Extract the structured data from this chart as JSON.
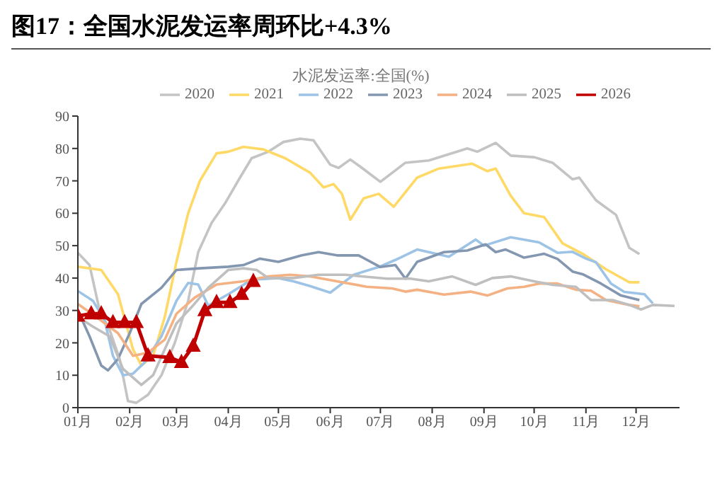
{
  "chart_data": {
    "type": "line",
    "title": "图17：全国水泥发运率周环比+4.3%",
    "subtitle": "水泥发运率:全国(%)",
    "xlim": [
      "--01-01",
      "--12-27"
    ],
    "xticks": [
      {
        "value": "--01-01",
        "label": "01月"
      },
      {
        "value": "--02-01",
        "label": "02月"
      },
      {
        "value": "--03-01",
        "label": "03月"
      },
      {
        "value": "--04-01",
        "label": "04月"
      },
      {
        "value": "--05-01",
        "label": "05月"
      },
      {
        "value": "--06-01",
        "label": "06月"
      },
      {
        "value": "--07-01",
        "label": "07月"
      },
      {
        "value": "--08-01",
        "label": "08月"
      },
      {
        "value": "--09-01",
        "label": "09月"
      },
      {
        "value": "--10-01",
        "label": "10月"
      },
      {
        "value": "--11-01",
        "label": "11月"
      },
      {
        "value": "--12-01",
        "label": "12月"
      }
    ],
    "ylim": [
      0,
      90
    ],
    "yticks": [
      0,
      10,
      20,
      30,
      40,
      50,
      60,
      70,
      80,
      90
    ],
    "grid": false,
    "legend": "top",
    "marker": "none",
    "line_style": "solid",
    "series": [
      {
        "name": "2020",
        "color": "#c4c4c4",
        "x": [
          "--01-01",
          "--01-08",
          "--01-14",
          "--01-20",
          "--01-26",
          "--01-31",
          "--02-05",
          "--02-12",
          "--02-20",
          "--02-28",
          "--03-08",
          "--03-14",
          "--03-22",
          "--03-30",
          "--04-08",
          "--04-15",
          "--04-25",
          "--05-04",
          "--05-14",
          "--05-22",
          "--06-01",
          "--06-06",
          "--06-13",
          "--06-20",
          "--07-01",
          "--07-16",
          "--07-30",
          "--08-22",
          "--08-28",
          "--09-08",
          "--09-17",
          "--10-01",
          "--10-12",
          "--10-24",
          "--10-28",
          "--11-07",
          "--11-19",
          "--11-27",
          "--12-03"
        ],
        "values": [
          47.8,
          44,
          30,
          24,
          15,
          2,
          1.5,
          4,
          10,
          20,
          33,
          48,
          57,
          63,
          71,
          77,
          79,
          82,
          83,
          82.5,
          75,
          74,
          76.6,
          74,
          69.7,
          75.6,
          76.3,
          80,
          79,
          81.7,
          77.8,
          77.3,
          75.6,
          70.5,
          71,
          64,
          59.5,
          49.3,
          47.4
        ]
      },
      {
        "name": "2021",
        "color": "#ffd966",
        "x": [
          "--01-01",
          "--01-15",
          "--01-25",
          "--02-03",
          "--02-08",
          "--02-15",
          "--02-22",
          "--03-01",
          "--03-08",
          "--03-15",
          "--03-25",
          "--04-01",
          "--04-10",
          "--04-22",
          "--05-05",
          "--05-20",
          "--05-28",
          "--06-03",
          "--06-08",
          "--06-13",
          "--06-21",
          "--06-30",
          "--07-09",
          "--07-23",
          "--08-05",
          "--08-25",
          "--09-03",
          "--09-08",
          "--09-17",
          "--09-25",
          "--10-07",
          "--10-18",
          "--10-30",
          "--11-13",
          "--11-27",
          "--12-03"
        ],
        "values": [
          43.5,
          42.5,
          35,
          18,
          13,
          16,
          28,
          45,
          60,
          70,
          78.5,
          79,
          80.5,
          79.7,
          77,
          72.5,
          68,
          69,
          66,
          58,
          64.6,
          66,
          62,
          71,
          73.8,
          75.3,
          73,
          73.8,
          65.4,
          60,
          58.8,
          50.7,
          47.5,
          42.7,
          38.7,
          38.7
        ]
      },
      {
        "name": "2022",
        "color": "#9dc3e6",
        "x": [
          "--01-01",
          "--01-10",
          "--01-17",
          "--01-22",
          "--01-28",
          "--02-03",
          "--02-10",
          "--02-20",
          "--03-01",
          "--03-08",
          "--03-14",
          "--03-20",
          "--04-01",
          "--04-15",
          "--05-01",
          "--05-10",
          "--05-20",
          "--06-01",
          "--06-15",
          "--06-30",
          "--07-10",
          "--07-23",
          "--08-11",
          "--08-27",
          "--09-01",
          "--09-17",
          "--10-04",
          "--10-15",
          "--10-24",
          "--11-01",
          "--11-07",
          "--11-16",
          "--11-24",
          "--12-06",
          "--12-11"
        ],
        "values": [
          36,
          33,
          27,
          16,
          10,
          10.5,
          14,
          22,
          33,
          38.5,
          38,
          31.5,
          35,
          39.5,
          40,
          39,
          37.5,
          35.5,
          41,
          43.4,
          45.6,
          48.8,
          46.6,
          51.9,
          50,
          52.6,
          51,
          47.8,
          48.1,
          46,
          44.9,
          38.3,
          35.7,
          35,
          32.2
        ]
      },
      {
        "name": "2023",
        "color": "#8497b0",
        "x": [
          "--01-01",
          "--01-08",
          "--01-15",
          "--01-19",
          "--01-25",
          "--02-01",
          "--02-08",
          "--02-20",
          "--03-01",
          "--03-15",
          "--04-01",
          "--04-10",
          "--04-20",
          "--05-01",
          "--05-15",
          "--05-25",
          "--06-05",
          "--06-18",
          "--07-01",
          "--07-10",
          "--07-16",
          "--07-23",
          "--08-08",
          "--08-22",
          "--09-02",
          "--09-08",
          "--09-14",
          "--09-25",
          "--10-07",
          "--10-15",
          "--10-24",
          "--10-30",
          "--11-10",
          "--11-22",
          "--12-03"
        ],
        "values": [
          30,
          22,
          13,
          11.5,
          15,
          23,
          32,
          37,
          42.5,
          43,
          43.5,
          44,
          46,
          45,
          47,
          48,
          47,
          47,
          43.4,
          44,
          39.8,
          45,
          48,
          48.5,
          50.4,
          48,
          48.8,
          46.3,
          47.5,
          45.9,
          42,
          41.2,
          38.3,
          34.6,
          33.2
        ]
      },
      {
        "name": "2024",
        "color": "#f4b183",
        "x": [
          "--01-01",
          "--01-12",
          "--01-25",
          "--02-03",
          "--02-12",
          "--02-22",
          "--03-01",
          "--03-12",
          "--03-25",
          "--04-10",
          "--04-25",
          "--05-08",
          "--05-20",
          "--06-05",
          "--06-23",
          "--07-08",
          "--07-16",
          "--07-23",
          "--08-08",
          "--08-24",
          "--09-03",
          "--09-15",
          "--09-25",
          "--10-04",
          "--10-15",
          "--10-26",
          "--11-04",
          "--11-13",
          "--11-27",
          "--12-03"
        ],
        "values": [
          32,
          28,
          23,
          16,
          17,
          21,
          29,
          34,
          38,
          39,
          40.5,
          41,
          40.5,
          39,
          37.3,
          36.8,
          35.8,
          36.4,
          34.9,
          35.8,
          34.6,
          36.8,
          37.3,
          38.3,
          38.3,
          36.4,
          36.1,
          33.2,
          31.7,
          31.3
        ]
      },
      {
        "name": "2025",
        "color": "#bfbfbf",
        "x": [
          "--01-01",
          "--01-10",
          "--01-20",
          "--01-28",
          "--02-08",
          "--02-15",
          "--02-22",
          "--03-01",
          "--03-10",
          "--03-20",
          "--04-01",
          "--04-10",
          "--04-18",
          "--04-25",
          "--05-10",
          "--05-25",
          "--06-10",
          "--07-05",
          "--07-19",
          "--07-30",
          "--08-13",
          "--08-27",
          "--09-06",
          "--09-17",
          "--10-01",
          "--10-12",
          "--10-26",
          "--11-04",
          "--11-17",
          "--11-27",
          "--12-04",
          "--12-11",
          "--12-24"
        ],
        "values": [
          28,
          25,
          22,
          12,
          7,
          10,
          18,
          26,
          31,
          37,
          42.5,
          43,
          42.5,
          40,
          40,
          41,
          41,
          39.8,
          39.8,
          39,
          40.5,
          37.9,
          40,
          40.5,
          39,
          37.9,
          37.3,
          33.2,
          33.2,
          31.7,
          30.3,
          31.7,
          31.4
        ]
      },
      {
        "name": "2026",
        "color": "#c00000",
        "marker": "triangle",
        "x": [
          "--01-01",
          "--01-09",
          "--01-15",
          "--01-22",
          "--01-29",
          "--02-05",
          "--02-12",
          "--02-25",
          "--03-04",
          "--03-11",
          "--03-18",
          "--03-25",
          "--04-02",
          "--04-09",
          "--04-16"
        ],
        "values": [
          28.3,
          29,
          29,
          26.3,
          26.3,
          26.3,
          16,
          15.5,
          14,
          19,
          30,
          32.5,
          32.5,
          35,
          39
        ]
      }
    ]
  }
}
